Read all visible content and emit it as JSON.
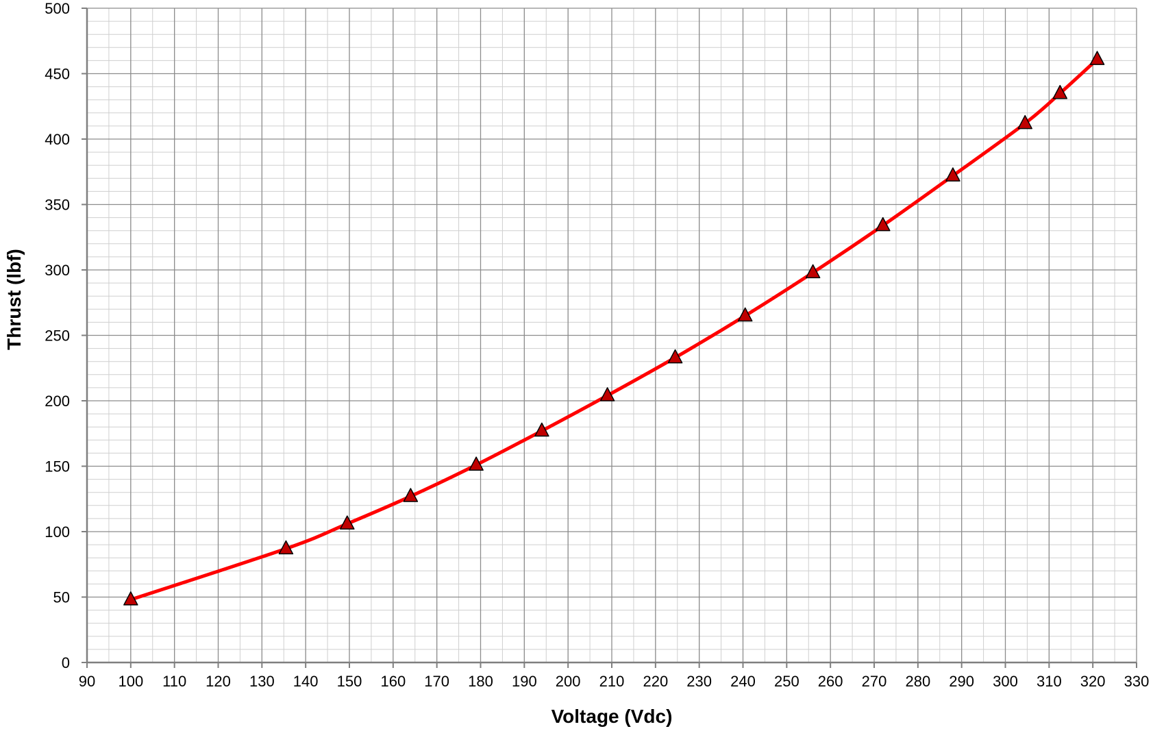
{
  "chart_data": {
    "type": "line",
    "title": "",
    "xlabel": "Voltage (Vdc)",
    "ylabel": "Thrust (lbf)",
    "xlim": [
      90,
      330
    ],
    "ylim": [
      0,
      500
    ],
    "x_major_step": 10,
    "x_minor_step": 5,
    "y_major_step": 50,
    "y_minor_step": 10,
    "grid": true,
    "legend": "none",
    "x_tick_labels": [
      "90",
      "100",
      "110",
      "120",
      "130",
      "140",
      "150",
      "160",
      "170",
      "180",
      "190",
      "200",
      "210",
      "220",
      "230",
      "240",
      "250",
      "260",
      "270",
      "280",
      "290",
      "300",
      "310",
      "320",
      "330"
    ],
    "y_tick_labels": [
      "0",
      "50",
      "100",
      "150",
      "200",
      "250",
      "300",
      "350",
      "400",
      "450",
      "500"
    ],
    "series": [
      {
        "line_color": "#ff0000",
        "marker": "triangle",
        "marker_color": "#c00000",
        "x": [
          100,
          135.5,
          149.5,
          164,
          179,
          194,
          209,
          224.5,
          240.5,
          256,
          272,
          288,
          304.5,
          312.5,
          321
        ],
        "y": [
          48,
          87,
          106,
          127,
          151,
          177,
          204,
          233,
          265,
          298,
          334,
          372,
          412,
          435,
          461
        ]
      }
    ]
  }
}
